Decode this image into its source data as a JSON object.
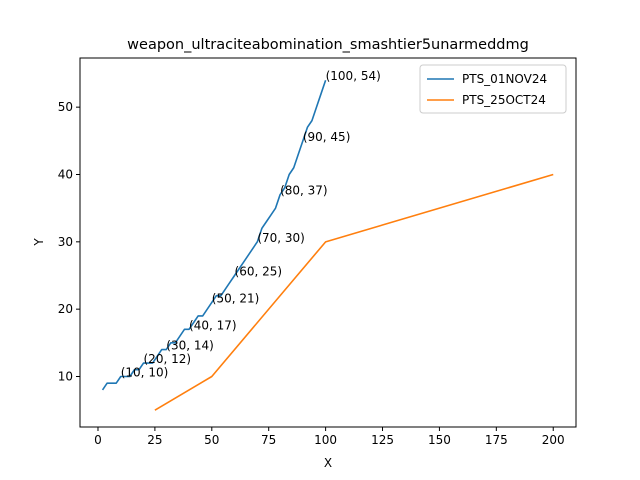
{
  "chart_data": {
    "type": "line",
    "title": "weapon_ultraciteabomination_smashtier5unarmeddmg",
    "xlabel": "X",
    "ylabel": "Y",
    "xlim": [
      -7.9,
      210
    ],
    "ylim": [
      2.5,
      57.3
    ],
    "xticks": [
      0,
      25,
      50,
      75,
      100,
      125,
      150,
      175,
      200
    ],
    "yticks": [
      10,
      20,
      30,
      40,
      50
    ],
    "grid": false,
    "legend_position": "top-right",
    "series": [
      {
        "name": "PTS_01NOV24",
        "color": "#1f77b4",
        "points": [
          [
            2,
            8
          ],
          [
            4,
            9
          ],
          [
            6,
            9
          ],
          [
            8,
            9
          ],
          [
            10,
            10
          ],
          [
            12,
            10
          ],
          [
            14,
            10
          ],
          [
            16,
            11
          ],
          [
            18,
            11
          ],
          [
            20,
            12
          ],
          [
            22,
            12
          ],
          [
            24,
            12
          ],
          [
            26,
            13
          ],
          [
            28,
            14
          ],
          [
            30,
            14
          ],
          [
            32,
            15
          ],
          [
            34,
            15
          ],
          [
            36,
            16
          ],
          [
            38,
            17
          ],
          [
            40,
            17
          ],
          [
            42,
            18
          ],
          [
            44,
            19
          ],
          [
            46,
            19
          ],
          [
            48,
            20
          ],
          [
            50,
            21
          ],
          [
            52,
            22
          ],
          [
            54,
            22
          ],
          [
            56,
            23
          ],
          [
            58,
            24
          ],
          [
            60,
            25
          ],
          [
            62,
            26
          ],
          [
            64,
            27
          ],
          [
            66,
            28
          ],
          [
            68,
            29
          ],
          [
            70,
            30
          ],
          [
            72,
            32
          ],
          [
            74,
            33
          ],
          [
            76,
            34
          ],
          [
            78,
            35
          ],
          [
            80,
            37
          ],
          [
            82,
            38
          ],
          [
            84,
            40
          ],
          [
            86,
            41
          ],
          [
            88,
            43
          ],
          [
            90,
            45
          ],
          [
            92,
            47
          ],
          [
            94,
            48
          ],
          [
            96,
            50
          ],
          [
            98,
            52
          ],
          [
            100,
            54
          ]
        ],
        "annotations": [
          {
            "x": 10,
            "y": 10,
            "text": "(10, 10)"
          },
          {
            "x": 20,
            "y": 12,
            "text": "(20, 12)"
          },
          {
            "x": 30,
            "y": 14,
            "text": "(30, 14)"
          },
          {
            "x": 40,
            "y": 17,
            "text": "(40, 17)"
          },
          {
            "x": 50,
            "y": 21,
            "text": "(50, 21)"
          },
          {
            "x": 60,
            "y": 25,
            "text": "(60, 25)"
          },
          {
            "x": 70,
            "y": 30,
            "text": "(70, 30)"
          },
          {
            "x": 80,
            "y": 37,
            "text": "(80, 37)"
          },
          {
            "x": 90,
            "y": 45,
            "text": "(90, 45)"
          },
          {
            "x": 100,
            "y": 54,
            "text": "(100, 54)"
          }
        ]
      },
      {
        "name": "PTS_25OCT24",
        "color": "#ff7f0e",
        "points": [
          [
            25,
            5
          ],
          [
            50,
            10
          ],
          [
            100,
            30
          ],
          [
            200,
            40
          ]
        ],
        "annotations": []
      }
    ]
  }
}
